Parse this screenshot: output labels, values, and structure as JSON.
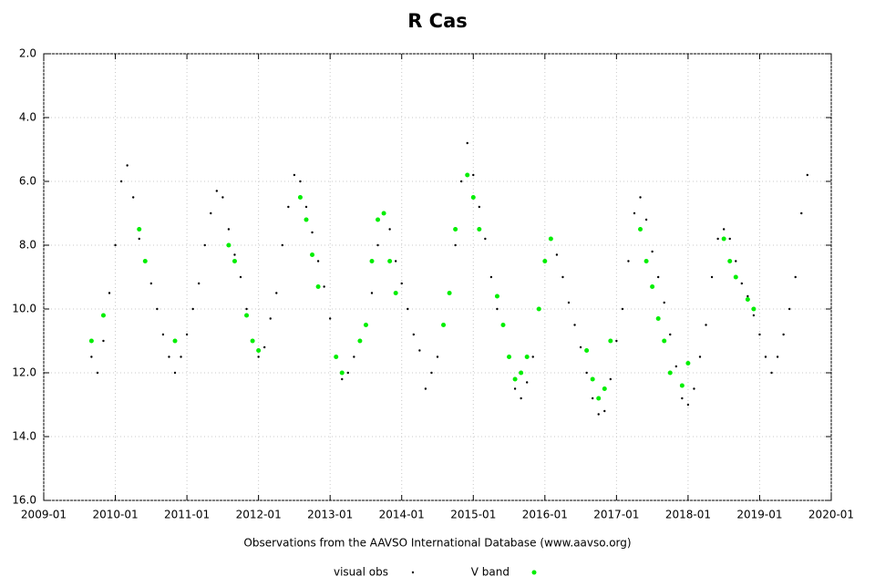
{
  "chart_data": {
    "type": "scatter",
    "title": "R Cas",
    "x_label": "Observations from the AAVSO International Database (www.aavso.org)",
    "xlim": [
      "2009-01",
      "2020-01"
    ],
    "xticks": [
      "2009-01",
      "2010-01",
      "2011-01",
      "2012-01",
      "2013-01",
      "2014-01",
      "2015-01",
      "2016-01",
      "2017-01",
      "2018-01",
      "2019-01",
      "2020-01"
    ],
    "ylim": [
      2,
      16
    ],
    "y_inverted": true,
    "yticks": [
      {
        "value": 2,
        "label": "2.0"
      },
      {
        "value": 4,
        "label": "4.0"
      },
      {
        "value": 6,
        "label": "6.0"
      },
      {
        "value": 8,
        "label": "8.0"
      },
      {
        "value": 10,
        "label": "10.0"
      },
      {
        "value": 12,
        "label": "12.0"
      },
      {
        "value": 14,
        "label": "14.0"
      },
      {
        "value": 16,
        "label": "16.0"
      }
    ],
    "grid": true,
    "legend": "bottom",
    "series": [
      {
        "name": "visual obs",
        "color": "#000000",
        "x": [
          "2009-09",
          "2009-10",
          "2009-11",
          "2009-12",
          "2010-01",
          "2010-02",
          "2010-03",
          "2010-04",
          "2010-05",
          "2010-06",
          "2010-07",
          "2010-08",
          "2010-09",
          "2010-10",
          "2010-11",
          "2010-12",
          "2011-01",
          "2011-02",
          "2011-03",
          "2011-04",
          "2011-05",
          "2011-06",
          "2011-07",
          "2011-08",
          "2011-09",
          "2011-10",
          "2011-11",
          "2011-12",
          "2012-01",
          "2012-02",
          "2012-03",
          "2012-04",
          "2012-05",
          "2012-06",
          "2012-07",
          "2012-08",
          "2012-09",
          "2012-10",
          "2012-11",
          "2012-12",
          "2013-01",
          "2013-02",
          "2013-03",
          "2013-04",
          "2013-05",
          "2013-06",
          "2013-07",
          "2013-08",
          "2013-09",
          "2013-10",
          "2013-11",
          "2013-12",
          "2014-01",
          "2014-02",
          "2014-03",
          "2014-04",
          "2014-05",
          "2014-06",
          "2014-07",
          "2014-08",
          "2014-09",
          "2014-10",
          "2014-11",
          "2014-12",
          "2015-01",
          "2015-02",
          "2015-03",
          "2015-04",
          "2015-05",
          "2015-06",
          "2015-07",
          "2015-08",
          "2015-09",
          "2015-10",
          "2015-11",
          "2015-12",
          "2016-01",
          "2016-02",
          "2016-03",
          "2016-04",
          "2016-05",
          "2016-06",
          "2016-07",
          "2016-08",
          "2016-09",
          "2016-10",
          "2016-11",
          "2016-12",
          "2017-01",
          "2017-02",
          "2017-03",
          "2017-04",
          "2017-05",
          "2017-06",
          "2017-07",
          "2017-08",
          "2017-09",
          "2017-10",
          "2017-11",
          "2017-12",
          "2018-01",
          "2018-02",
          "2018-03",
          "2018-04",
          "2018-05",
          "2018-06",
          "2018-07",
          "2018-08",
          "2018-09",
          "2018-10",
          "2018-11",
          "2018-12",
          "2019-01",
          "2019-02",
          "2019-03",
          "2019-04",
          "2019-05",
          "2019-06",
          "2019-07",
          "2019-08",
          "2019-09"
        ],
        "values": [
          11.5,
          12,
          11,
          9.5,
          8,
          6,
          5.5,
          6.5,
          7.8,
          8.5,
          9.2,
          10,
          10.8,
          11.5,
          12,
          11.5,
          10.8,
          10,
          9.2,
          8,
          7,
          6.3,
          6.5,
          7.5,
          8.3,
          9,
          10,
          11,
          11.5,
          11.2,
          10.3,
          9.5,
          8,
          6.8,
          5.8,
          6,
          6.8,
          7.6,
          8.5,
          9.3,
          10.3,
          11.5,
          12.2,
          12,
          11.5,
          11,
          10.5,
          9.5,
          8,
          7,
          7.5,
          8.5,
          9.2,
          10,
          10.8,
          11.3,
          12.5,
          12,
          11.5,
          10.5,
          9.5,
          8,
          6,
          4.8,
          5.8,
          6.8,
          7.8,
          9,
          10,
          10.5,
          11.5,
          12.5,
          12.8,
          12.3,
          11.5,
          10,
          8.5,
          7.8,
          8.3,
          9,
          9.8,
          10.5,
          11.2,
          12,
          12.8,
          13.3,
          13.2,
          12.2,
          11,
          10,
          8.5,
          7,
          6.5,
          7.2,
          8.2,
          9,
          9.8,
          10.8,
          11.8,
          12.8,
          13,
          12.5,
          11.5,
          10.5,
          9,
          7.8,
          7.5,
          7.8,
          8.5,
          9.2,
          9.6,
          10.2,
          10.8,
          11.5,
          12,
          11.5,
          10.8,
          10,
          9,
          7,
          5.8
        ]
      },
      {
        "name": "V band",
        "color": "#00ee00",
        "x": [
          "2009-09",
          "2009-11",
          "2010-05",
          "2010-06",
          "2010-11",
          "2011-08",
          "2011-09",
          "2011-11",
          "2011-12",
          "2012-01",
          "2012-08",
          "2012-09",
          "2012-10",
          "2012-11",
          "2013-02",
          "2013-03",
          "2013-06",
          "2013-07",
          "2013-08",
          "2013-09",
          "2013-10",
          "2013-11",
          "2013-12",
          "2014-08",
          "2014-09",
          "2014-10",
          "2014-12",
          "2015-01",
          "2015-02",
          "2015-05",
          "2015-06",
          "2015-07",
          "2015-08",
          "2015-09",
          "2015-10",
          "2015-12",
          "2016-01",
          "2016-02",
          "2016-08",
          "2016-09",
          "2016-10",
          "2016-11",
          "2016-12",
          "2017-05",
          "2017-06",
          "2017-07",
          "2017-08",
          "2017-09",
          "2017-10",
          "2017-12",
          "2018-01",
          "2018-07",
          "2018-08",
          "2018-09",
          "2018-11",
          "2018-12"
        ],
        "values": [
          11,
          10.2,
          7.5,
          8.5,
          11,
          8,
          8.5,
          10.2,
          11,
          11.3,
          6.5,
          7.2,
          8.3,
          9.3,
          11.5,
          12,
          11,
          10.5,
          8.5,
          7.2,
          7,
          8.5,
          9.5,
          10.5,
          9.5,
          7.5,
          5.8,
          6.5,
          7.5,
          9.6,
          10.5,
          11.5,
          12.2,
          12,
          11.5,
          10,
          8.5,
          7.8,
          11.3,
          12.2,
          12.8,
          12.5,
          11,
          7.5,
          8.5,
          9.3,
          10.3,
          11,
          12,
          12.4,
          11.7,
          7.8,
          8.5,
          9,
          9.7,
          10
        ]
      }
    ]
  }
}
